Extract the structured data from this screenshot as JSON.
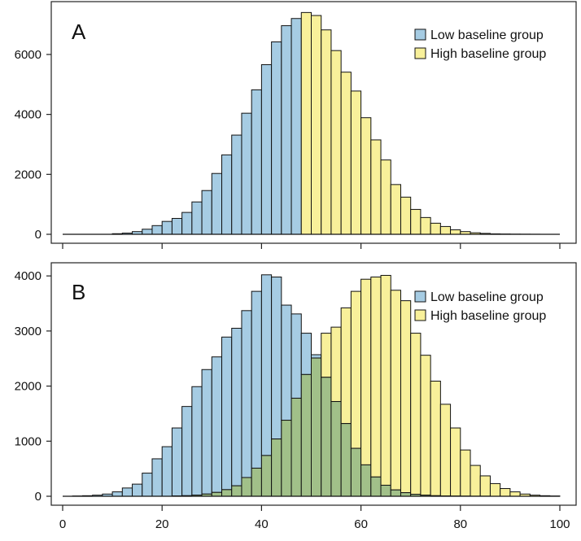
{
  "chart_data": [
    {
      "type": "bar",
      "panel_label": "A",
      "title": "",
      "xlabel": "",
      "ylabel": "",
      "ylim": [
        0,
        7600
      ],
      "yticks": [
        0,
        2000,
        4000,
        6000
      ],
      "grid": false,
      "legend_position": "top-right",
      "bin_width": 2,
      "x": [
        11,
        13,
        15,
        17,
        19,
        21,
        23,
        25,
        27,
        29,
        31,
        33,
        35,
        37,
        39,
        41,
        43,
        45,
        47,
        49,
        51,
        53,
        55,
        57,
        59,
        61,
        63,
        65,
        67,
        69,
        71,
        73,
        75,
        77,
        79,
        81,
        83,
        85,
        87,
        89,
        91,
        93,
        95
      ],
      "series": [
        {
          "name": "Low baseline group",
          "color": "#a6cce3",
          "values": [
            20,
            40,
            90,
            170,
            290,
            430,
            530,
            730,
            1080,
            1460,
            2030,
            2650,
            3310,
            4040,
            4820,
            5660,
            6420,
            6960,
            7200,
            0,
            0,
            0,
            0,
            0,
            0,
            0,
            0,
            0,
            0,
            0,
            0,
            0,
            0,
            0,
            0,
            0,
            0,
            0,
            0,
            0,
            0,
            0,
            0
          ]
        },
        {
          "name": "High baseline group",
          "color": "#f8f09a",
          "values": [
            0,
            0,
            0,
            0,
            0,
            0,
            0,
            0,
            0,
            0,
            0,
            0,
            0,
            0,
            0,
            0,
            0,
            0,
            0,
            7400,
            7300,
            6820,
            6130,
            5410,
            4780,
            3890,
            3150,
            2480,
            1660,
            1240,
            830,
            560,
            370,
            260,
            150,
            90,
            50,
            30,
            15,
            10,
            6,
            4,
            2
          ]
        }
      ]
    },
    {
      "type": "bar",
      "panel_label": "B",
      "title": "",
      "xlabel": "",
      "ylabel": "",
      "ylim": [
        0,
        4150
      ],
      "xlim": [
        -2,
        102
      ],
      "yticks": [
        0,
        1000,
        2000,
        3000,
        4000
      ],
      "xticks": [
        0,
        20,
        40,
        60,
        80,
        100
      ],
      "grid": false,
      "legend_position": "top-right",
      "bin_width": 2,
      "x": [
        3,
        5,
        7,
        9,
        11,
        13,
        15,
        17,
        19,
        21,
        23,
        25,
        27,
        29,
        31,
        33,
        35,
        37,
        39,
        41,
        43,
        45,
        47,
        49,
        51,
        53,
        55,
        57,
        59,
        61,
        63,
        65,
        67,
        69,
        71,
        73,
        75,
        77,
        79,
        81,
        83,
        85,
        87,
        89,
        91,
        93,
        95,
        97,
        99
      ],
      "series": [
        {
          "name": "Low baseline group",
          "color": "#a6cce3",
          "values": [
            5,
            10,
            20,
            40,
            80,
            150,
            220,
            420,
            680,
            900,
            1240,
            1630,
            1990,
            2300,
            2530,
            2890,
            3050,
            3370,
            3720,
            4020,
            3980,
            3470,
            3310,
            2960,
            2570,
            2160,
            1720,
            1320,
            870,
            570,
            350,
            200,
            115,
            65,
            35,
            20,
            10,
            5,
            3,
            2,
            1,
            1,
            0,
            0,
            0,
            0,
            0,
            0,
            0
          ]
        },
        {
          "name": "High baseline group",
          "color": "#f8f09a",
          "values": [
            0,
            0,
            0,
            0,
            0,
            0,
            0,
            0,
            0,
            0,
            5,
            10,
            20,
            40,
            70,
            120,
            190,
            340,
            510,
            740,
            1040,
            1380,
            1780,
            2210,
            2510,
            2960,
            3070,
            3420,
            3720,
            3940,
            3980,
            4010,
            3740,
            3550,
            2960,
            2560,
            2090,
            1670,
            1240,
            840,
            560,
            370,
            230,
            140,
            80,
            40,
            20,
            10,
            5
          ]
        }
      ]
    }
  ]
}
